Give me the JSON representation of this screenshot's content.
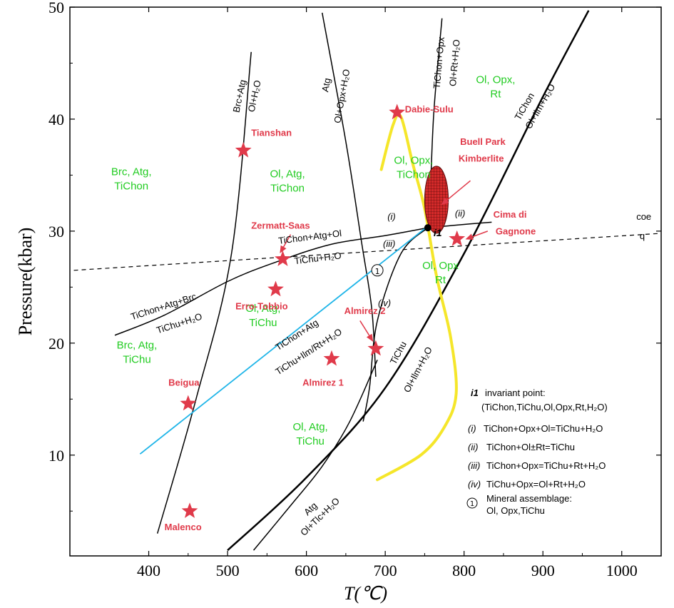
{
  "chart_data": {
    "type": "scatter",
    "xlabel": "T(℃)",
    "ylabel": "Pressure(kbar)",
    "xlim": [
      300,
      1050
    ],
    "ylim": [
      1,
      50
    ],
    "xticks": [
      "400",
      "500",
      "600",
      "700",
      "800",
      "900",
      "1000"
    ],
    "yticks": [
      "10",
      "20",
      "30",
      "40",
      "50"
    ],
    "colors": {
      "reaction_line": "#000000",
      "fields": "#22cc22",
      "sites": "#e03a4a",
      "blue_line": "#1fb5e8",
      "yellow_path": "#f5e62a",
      "ellipse": "#d42a2a"
    },
    "lines": [
      {
        "id": "brc-atg",
        "width": 1.5,
        "points": [
          [
            411,
            3
          ],
          [
            460,
            15
          ],
          [
            505,
            28
          ],
          [
            530,
            46
          ]
        ]
      },
      {
        "id": "atg-opx",
        "width": 1.5,
        "points": [
          [
            620,
            49.5
          ],
          [
            650,
            38
          ],
          [
            670,
            29
          ],
          [
            683,
            23
          ],
          [
            688,
            17
          ]
        ]
      },
      {
        "id": "tichon-opx-wave",
        "width": 1.5,
        "points": [
          [
            772,
            49
          ],
          [
            762,
            41
          ],
          [
            758,
            35
          ],
          [
            756,
            32
          ],
          [
            754,
            30
          ]
        ]
      },
      {
        "id": "tichon-ol-ilm",
        "width": 2.5,
        "points": [
          [
            500,
            1.5
          ],
          [
            600,
            8
          ],
          [
            700,
            16
          ],
          [
            800,
            28
          ],
          [
            900,
            42
          ],
          [
            958,
            49.7
          ]
        ]
      },
      {
        "id": "atg-tlc",
        "width": 1.5,
        "points": [
          [
            533,
            1.5
          ],
          [
            580,
            5.5
          ],
          [
            620,
            9
          ],
          [
            655,
            13
          ],
          [
            690,
            18.5
          ]
        ]
      },
      {
        "id": "tichon-atg-brc",
        "width": 1.5,
        "points": [
          [
            357,
            20.7
          ],
          [
            420,
            22.5
          ],
          [
            500,
            25.5
          ],
          [
            560,
            27.2
          ],
          [
            630,
            28.8
          ],
          [
            700,
            29.6
          ],
          [
            754,
            30.3
          ]
        ]
      },
      {
        "id": "curve-ii",
        "width": 1.5,
        "points": [
          [
            754,
            30.3
          ],
          [
            800,
            30.6
          ],
          [
            835,
            30.8
          ]
        ]
      },
      {
        "id": "curve-iii",
        "width": 1.5,
        "points": [
          [
            754,
            30.3
          ],
          [
            720,
            28
          ],
          [
            690,
            22
          ],
          [
            680,
            16
          ],
          [
            672,
            13
          ]
        ]
      },
      {
        "id": "coe-q",
        "width": 1.2,
        "dash": "6,5",
        "points": [
          [
            305,
            26.5
          ],
          [
            1050,
            29.8
          ]
        ]
      },
      {
        "id": "tichon-atg-ilm",
        "width": 1.8,
        "color": "blue_line",
        "points": [
          [
            389,
            10.1
          ],
          [
            757,
            30.6
          ]
        ]
      }
    ],
    "yellow_path": [
      [
        690,
        7.8
      ],
      [
        745,
        10
      ],
      [
        775,
        12.5
      ],
      [
        790,
        15.5
      ],
      [
        783,
        20.5
      ],
      [
        765,
        26
      ],
      [
        750,
        32
      ],
      [
        735,
        36
      ],
      [
        720,
        40.2
      ],
      [
        710,
        39.5
      ],
      [
        695,
        35.5
      ]
    ],
    "ellipse": {
      "x": 765,
      "y": 32.8,
      "rx": 15,
      "ry": 3.0
    },
    "invariant_point": {
      "label": "i1",
      "x": 754,
      "y": 30.3
    },
    "curve_labels": [
      {
        "text": "Brc+Atg",
        "x": 519,
        "y": 42,
        "angle": -78
      },
      {
        "text": "Ol+H₂O",
        "x": 538,
        "y": 42,
        "angle": -78
      },
      {
        "text": "Atg",
        "x": 629,
        "y": 43,
        "angle": -80
      },
      {
        "text": "Ol+Opx+H₂O",
        "x": 649,
        "y": 42,
        "angle": -80
      },
      {
        "text": "TiChon+Opx",
        "x": 772,
        "y": 45,
        "angle": -85
      },
      {
        "text": "Ol+Rt+H₂O",
        "x": 792,
        "y": 45,
        "angle": -85
      },
      {
        "text": "TiChon",
        "x": 880,
        "y": 41,
        "angle": -60
      },
      {
        "text": "Ol+Ilm+H₂O",
        "x": 900,
        "y": 41,
        "angle": -60
      },
      {
        "text": "TiChon+Atg+Ol",
        "x": 605,
        "y": 29.2,
        "angle": -7
      },
      {
        "text": "TiChu+H₂O",
        "x": 615,
        "y": 27.3,
        "angle": -7
      },
      {
        "text": "TiChon+Atg+Brc",
        "x": 420,
        "y": 23,
        "angle": -18
      },
      {
        "text": "TiChu+H₂O",
        "x": 440,
        "y": 21.5,
        "angle": -18
      },
      {
        "text": "TiChon+Atg",
        "x": 590,
        "y": 20.5,
        "angle": -33
      },
      {
        "text": "TiChu+Ilm/Rt+H₂O",
        "x": 605,
        "y": 19,
        "angle": -33
      },
      {
        "text": "TiChu",
        "x": 720,
        "y": 19,
        "angle": -62
      },
      {
        "text": "Ol+Ilm+H₂O",
        "x": 745,
        "y": 17.5,
        "angle": -62
      },
      {
        "text": "Atg",
        "x": 608,
        "y": 5,
        "angle": -44
      },
      {
        "text": "Ol+Tlc+H₂O",
        "x": 620,
        "y": 4.3,
        "angle": -44
      },
      {
        "text": "coe",
        "x": 1028,
        "y": 31,
        "angle": 0
      },
      {
        "text": "q",
        "x": 1026,
        "y": 29.3,
        "angle": 0
      }
    ],
    "roman_labels": [
      {
        "text": "(i)",
        "x": 708,
        "y": 31
      },
      {
        "text": "(ii)",
        "x": 795,
        "y": 31.3
      },
      {
        "text": "(iii)",
        "x": 705,
        "y": 28.6
      },
      {
        "text": "(iv)",
        "x": 699,
        "y": 23.3
      }
    ],
    "fields": [
      {
        "lines": [
          "Brc, Atg,",
          "TiChon"
        ],
        "x": 378,
        "y": 35
      },
      {
        "lines": [
          "Ol, Atg,",
          "TiChon"
        ],
        "x": 576,
        "y": 34.8
      },
      {
        "lines": [
          "Ol, Opx,",
          "TiChon"
        ],
        "x": 736,
        "y": 36
      },
      {
        "lines": [
          "Ol, Opx,",
          "Rt"
        ],
        "x": 840,
        "y": 43.2
      },
      {
        "lines": [
          "Ol, Opx",
          "Rt"
        ],
        "x": 770,
        "y": 26.6
      },
      {
        "lines": [
          "Brc, Atg,",
          "TiChu"
        ],
        "x": 385,
        "y": 19.5
      },
      {
        "lines": [
          "Ol, Atg,",
          "TiChu"
        ],
        "x": 545,
        "y": 22.8
      },
      {
        "lines": [
          "Ol, Atg,",
          "TiChu"
        ],
        "x": 605,
        "y": 12.2
      }
    ],
    "sites": [
      {
        "name": "Tianshan",
        "x": 520,
        "y": 37.2,
        "lx": 530,
        "ly": 38.5,
        "anchor": "start"
      },
      {
        "name": "Zermatt-Saas",
        "x": 570,
        "y": 27.5,
        "lx": 530,
        "ly": 30.2,
        "anchor": "start"
      },
      {
        "name": "Erro-Tobbio",
        "x": 561,
        "y": 24.8,
        "lx": 510,
        "ly": 23,
        "anchor": "start"
      },
      {
        "name": "Beigua",
        "x": 450,
        "y": 14.6,
        "lx": 425,
        "ly": 16.2,
        "anchor": "start"
      },
      {
        "name": "Malenco",
        "x": 452,
        "y": 5,
        "lx": 420,
        "ly": 3.3,
        "anchor": "start"
      },
      {
        "name": "Almirez 1",
        "x": 632,
        "y": 18.6,
        "lx": 595,
        "ly": 16.2,
        "anchor": "start"
      },
      {
        "name": "Almirez 2",
        "x": 688,
        "y": 19.5,
        "lx": 648,
        "ly": 22.6,
        "anchor": "start"
      },
      {
        "name": "Dabie-Sulu",
        "x": 715,
        "y": 40.6,
        "lx": 725,
        "ly": 40.6,
        "anchor": "start"
      },
      {
        "name": "Cima di",
        "x": 791,
        "y": 29.3,
        "lx": 837,
        "ly": 31.2,
        "anchor": "start"
      },
      {
        "name": "Gagnone",
        "x": 791,
        "y": 29.3,
        "lx": 840,
        "ly": 29.7,
        "anchor": "start"
      }
    ],
    "extra_labels": [
      {
        "text": "Buell Park",
        "x": 795,
        "y": 37.7
      },
      {
        "text": "Kimberlite",
        "x": 793,
        "y": 36.2
      }
    ],
    "legend": {
      "title_key": "i1",
      "title": "invariant point:",
      "title_sub": "(TiChon,TiChu,Ol,Opx,Rt,H₂O)",
      "items": [
        {
          "key": "(i)",
          "text": "TiChon+Opx+Ol=TiChu+H₂O"
        },
        {
          "key": "(ii)",
          "text": "TiChon+Ol±Rt=TiChu"
        },
        {
          "key": "(iii)",
          "text": "TiChon+Opx=TiChu+Rt+H₂O"
        },
        {
          "key": "(iv)",
          "text": "TiChu+Opx=Ol+Rt+H₂O"
        }
      ],
      "assemblage_symbol": "①",
      "assemblage_title": "Mineral assemblage:",
      "assemblage_text": "Ol, Opx,TiChu",
      "circle_label": "①"
    }
  }
}
